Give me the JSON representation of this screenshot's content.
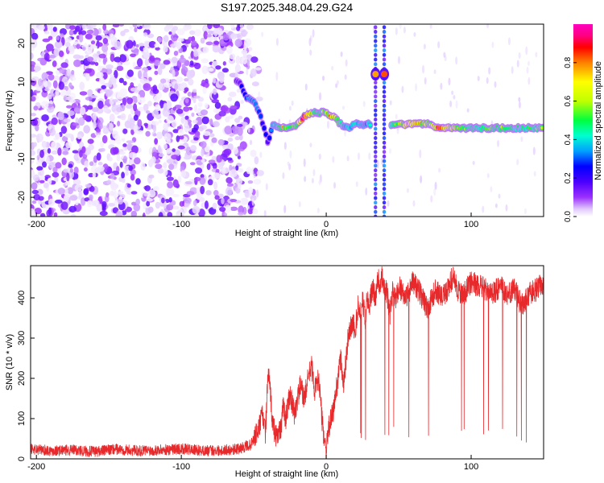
{
  "title": "S197.2025.348.04.29.G24",
  "chart_data": [
    {
      "type": "heatmap",
      "xlabel": "Height of straight line (km)",
      "ylabel": "Frequency (Hz)",
      "xlim": [
        -204,
        150
      ],
      "ylim": [
        -25,
        25
      ],
      "xticks": [
        -200,
        -100,
        0,
        100
      ],
      "yticks": [
        -20,
        -10,
        0,
        10,
        20
      ],
      "colorbar": {
        "label": "Normalized spectral amplitude",
        "range": [
          0,
          1
        ],
        "ticks": [
          0.0,
          0.2,
          0.4,
          0.6,
          0.8
        ],
        "colors": [
          "#ffffff",
          "#e0c8ff",
          "#9b30ff",
          "#4b00ff",
          "#0000ff",
          "#00a0ff",
          "#00ffd0",
          "#00ff40",
          "#c0ff00",
          "#ffff00",
          "#ff8000",
          "#ff0000",
          "#ff0080",
          "#ff00c0"
        ]
      },
      "noise_region_x": [
        -204,
        -55
      ],
      "ridge": {
        "x": [
          -60,
          -55,
          -50,
          -46,
          -43,
          -40,
          -37,
          -33,
          -30,
          -25,
          -20,
          -15,
          -10,
          -5,
          0,
          5,
          10,
          15,
          20,
          25,
          30,
          35,
          45,
          50,
          60,
          70,
          80,
          90,
          100,
          110,
          120,
          130,
          140,
          150
        ],
        "frequency": [
          10,
          6,
          5,
          2,
          -2,
          -6,
          -1,
          -2,
          -2,
          -2,
          -1,
          1,
          2,
          2,
          2,
          1,
          -1,
          -2,
          -1,
          -1,
          -1,
          -1,
          -1,
          -1,
          -1,
          -1,
          -2,
          -2,
          -2,
          -2,
          -2,
          -2,
          -2,
          -2
        ],
        "amplitude": [
          0.25,
          0.4,
          0.45,
          0.4,
          0.35,
          0.3,
          0.5,
          0.6,
          0.75,
          0.6,
          0.7,
          0.95,
          0.7,
          0.6,
          0.7,
          0.85,
          0.6,
          0.5,
          0.55,
          0.5,
          0.5,
          0.4,
          0.55,
          0.7,
          0.9,
          0.7,
          0.95,
          0.7,
          0.6,
          0.65,
          0.65,
          0.6,
          0.65,
          0.65
        ]
      },
      "spikes": [
        {
          "x": 34,
          "frequency": 12,
          "amplitude": 0.75
        },
        {
          "x": 40,
          "frequency": 12,
          "amplitude": 0.8
        }
      ]
    },
    {
      "type": "line",
      "xlabel": "Height of straight line (km)",
      "ylabel": "SNR (10 * v/v)",
      "xlim": [
        -204,
        150
      ],
      "ylim": [
        0,
        480
      ],
      "xticks": [
        -200,
        -100,
        0,
        100
      ],
      "yticks": [
        0,
        100,
        200,
        300,
        400
      ],
      "series": [
        {
          "name": "SNR",
          "color": "#e8292b",
          "x": [
            -204,
            -190,
            -175,
            -160,
            -145,
            -130,
            -115,
            -100,
            -85,
            -70,
            -60,
            -52,
            -47,
            -44,
            -42,
            -40,
            -37,
            -35,
            -31,
            -30,
            -28,
            -25,
            -22,
            -18,
            -15,
            -12,
            -10,
            -8,
            -5,
            -3,
            -1,
            0,
            2,
            5,
            8,
            10,
            12,
            15,
            18,
            20,
            22,
            24,
            25,
            27,
            28,
            30,
            32,
            34,
            36,
            37,
            38,
            39,
            40,
            42,
            44,
            46,
            48,
            50,
            55,
            60,
            65,
            70,
            75,
            80,
            85,
            88,
            90,
            95,
            100,
            105,
            110,
            115,
            120,
            125,
            130,
            135,
            140,
            145,
            150
          ],
          "values": [
            25,
            20,
            22,
            18,
            24,
            20,
            22,
            25,
            20,
            22,
            25,
            35,
            70,
            110,
            65,
            220,
            90,
            60,
            70,
            140,
            100,
            160,
            110,
            180,
            150,
            210,
            230,
            170,
            200,
            100,
            40,
            20,
            80,
            120,
            200,
            250,
            180,
            300,
            340,
            320,
            380,
            360,
            400,
            340,
            410,
            380,
            430,
            400,
            450,
            420,
            460,
            440,
            430,
            410,
            360,
            420,
            390,
            430,
            400,
            440,
            410,
            370,
            420,
            400,
            430,
            460,
            420,
            410,
            440,
            430,
            420,
            410,
            430,
            410,
            420,
            380,
            410,
            420,
            440
          ],
          "dropout_floor": 40
        }
      ]
    }
  ]
}
